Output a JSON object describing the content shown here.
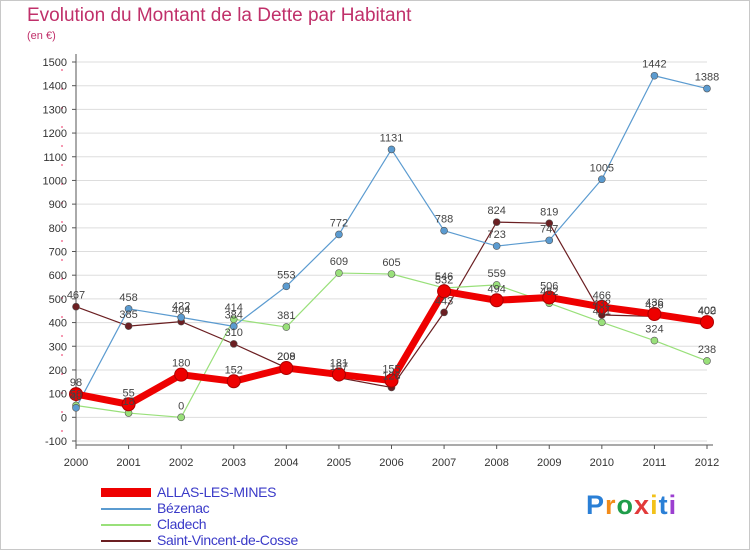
{
  "title": "Evolution du Montant de la Dette par Habitant",
  "subtitle": "(en €)",
  "logo_text": "Proxiti",
  "logo_colors": [
    "#2a7fd6",
    "#f28c1a",
    "#1f9d4a",
    "#e23a3a",
    "#f2c21a",
    "#2a7fd6",
    "#9c3fd0"
  ],
  "chart_data": {
    "type": "line",
    "x": [
      2000,
      2001,
      2002,
      2003,
      2004,
      2005,
      2006,
      2007,
      2008,
      2009,
      2010,
      2011,
      2012
    ],
    "ylim": [
      -100,
      1500
    ],
    "yticks": [
      -100,
      0,
      100,
      200,
      300,
      400,
      500,
      600,
      700,
      800,
      900,
      1000,
      1100,
      1200,
      1300,
      1400,
      1500
    ],
    "grid": "horizontal",
    "legend_position": "bottom-left",
    "series": [
      {
        "name": "Saint-Vincent-de-Cosse",
        "color": "#6b1f22",
        "width": 1.2,
        "values": [
          467,
          385,
          404,
          310,
          209,
          167,
          126,
          443,
          824,
          819,
          432,
          426,
          400
        ]
      },
      {
        "name": "Cladech",
        "color": "#99e07a",
        "width": 1.2,
        "values": [
          50,
          18,
          0,
          414,
          381,
          609,
          605,
          546,
          559,
          482,
          401,
          324,
          238
        ]
      },
      {
        "name": "Bézenac",
        "color": "#5b9bd0",
        "width": 1.2,
        "values": [
          40,
          458,
          422,
          384,
          553,
          772,
          1131,
          788,
          723,
          747,
          1005,
          1442,
          1388
        ]
      },
      {
        "name": "ALLAS-LES-MINES",
        "color": "#ee0000",
        "width": 7,
        "values": [
          98,
          55,
          180,
          152,
          208,
          181,
          155,
          532,
          494,
          506,
          466,
          436,
          402
        ]
      }
    ]
  }
}
